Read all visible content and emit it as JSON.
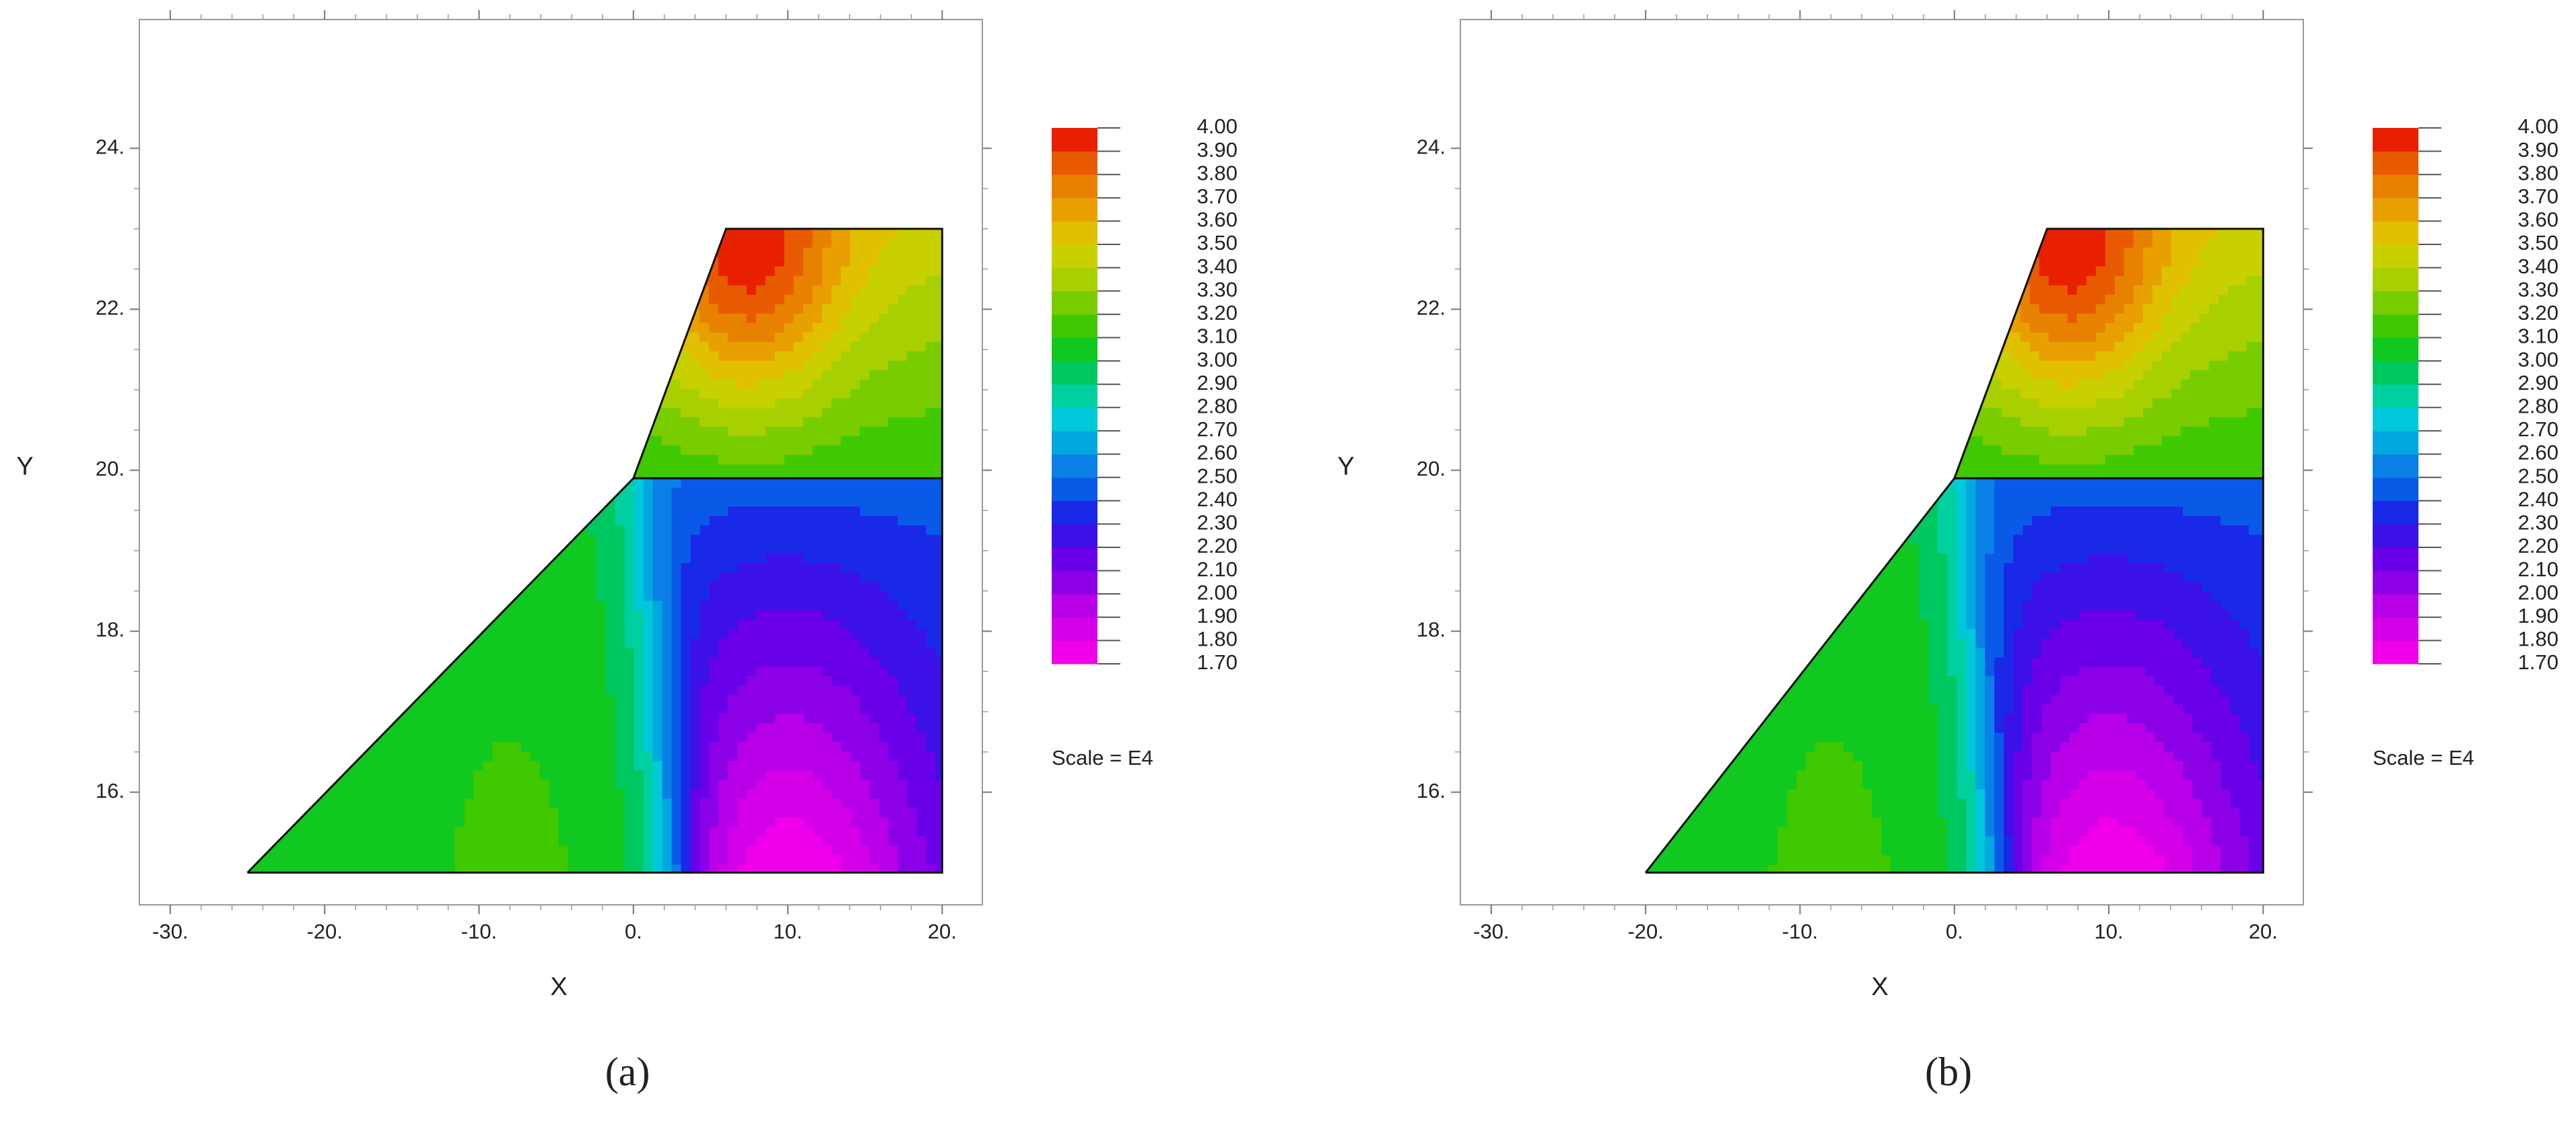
{
  "chart_data": [
    {
      "type": "contour",
      "xlabel": "X",
      "ylabel": "Y",
      "xlim": [
        -32,
        22.6
      ],
      "ylim": [
        14.6,
        25.6
      ],
      "xticks": [
        {
          "value": -30,
          "label": "-30."
        },
        {
          "value": -20,
          "label": "-20."
        },
        {
          "value": -10,
          "label": "-10."
        },
        {
          "value": 0,
          "label": "0."
        },
        {
          "value": 10,
          "label": "10."
        },
        {
          "value": 20,
          "label": "20."
        }
      ],
      "yticks": [
        {
          "value": 16,
          "label": "16."
        },
        {
          "value": 18,
          "label": "18."
        },
        {
          "value": 20,
          "label": "20."
        },
        {
          "value": 22,
          "label": "22."
        },
        {
          "value": 24,
          "label": "24."
        }
      ],
      "levels": [
        {
          "value": 1.7,
          "label": "1.70"
        },
        {
          "value": 1.8,
          "label": "1.80"
        },
        {
          "value": 1.9,
          "label": "1.90"
        },
        {
          "value": 2,
          "label": "2.00"
        },
        {
          "value": 2.1,
          "label": "2.10"
        },
        {
          "value": 2.2,
          "label": "2.20"
        },
        {
          "value": 2.3,
          "label": "2.30"
        },
        {
          "value": 2.4,
          "label": "2.40"
        },
        {
          "value": 2.5,
          "label": "2.50"
        },
        {
          "value": 2.6,
          "label": "2.60"
        },
        {
          "value": 2.7,
          "label": "2.70"
        },
        {
          "value": 2.8,
          "label": "2.80"
        },
        {
          "value": 2.9,
          "label": "2.90"
        },
        {
          "value": 3,
          "label": "3.00"
        },
        {
          "value": 3.1,
          "label": "3.10"
        },
        {
          "value": 3.2,
          "label": "3.20"
        },
        {
          "value": 3.3,
          "label": "3.30"
        },
        {
          "value": 3.4,
          "label": "3.40"
        },
        {
          "value": 3.5,
          "label": "3.50"
        },
        {
          "value": 3.6,
          "label": "3.60"
        },
        {
          "value": 3.7,
          "label": "3.70"
        },
        {
          "value": 3.8,
          "label": "3.80"
        },
        {
          "value": 3.9,
          "label": "3.90"
        },
        {
          "value": 4,
          "label": "4.00"
        }
      ],
      "level_colors": [
        "#f000e8",
        "#d400e8",
        "#b800e8",
        "#8c00e8",
        "#6a00e8",
        "#3c10e8",
        "#1a28e8",
        "#0a5ae8",
        "#0a80e6",
        "#00a8e0",
        "#00c8d8",
        "#00d0a0",
        "#00c860",
        "#10c820",
        "#40c800",
        "#78cc00",
        "#a8d000",
        "#c8d000",
        "#e0c000",
        "#e8a000",
        "#e88000",
        "#e85a00",
        "#e82000"
      ],
      "scale_note": "Scale = E4",
      "caption": "(a)",
      "regions": [
        {
          "x": [
            -25,
            0,
            20,
            20
          ],
          "y": [
            15,
            19.9,
            19.9,
            15
          ]
        },
        {
          "x": [
            0,
            6,
            20,
            20
          ],
          "y": [
            19.9,
            23,
            23,
            19.9
          ]
        }
      ]
    },
    {
      "type": "contour",
      "xlabel": "X",
      "ylabel": "Y",
      "xlim": [
        -32,
        22.6
      ],
      "ylim": [
        14.6,
        25.6
      ],
      "xticks": [
        {
          "value": -30,
          "label": "-30."
        },
        {
          "value": -20,
          "label": "-20."
        },
        {
          "value": -10,
          "label": "-10."
        },
        {
          "value": 0,
          "label": "0."
        },
        {
          "value": 10,
          "label": "10."
        },
        {
          "value": 20,
          "label": "20."
        }
      ],
      "yticks": [
        {
          "value": 16,
          "label": "16."
        },
        {
          "value": 18,
          "label": "18."
        },
        {
          "value": 20,
          "label": "20."
        },
        {
          "value": 22,
          "label": "22."
        },
        {
          "value": 24,
          "label": "24."
        }
      ],
      "levels": [
        {
          "value": 1.7,
          "label": "1.70"
        },
        {
          "value": 1.8,
          "label": "1.80"
        },
        {
          "value": 1.9,
          "label": "1.90"
        },
        {
          "value": 2,
          "label": "2.00"
        },
        {
          "value": 2.1,
          "label": "2.10"
        },
        {
          "value": 2.2,
          "label": "2.20"
        },
        {
          "value": 2.3,
          "label": "2.30"
        },
        {
          "value": 2.4,
          "label": "2.40"
        },
        {
          "value": 2.5,
          "label": "2.50"
        },
        {
          "value": 2.6,
          "label": "2.60"
        },
        {
          "value": 2.7,
          "label": "2.70"
        },
        {
          "value": 2.8,
          "label": "2.80"
        },
        {
          "value": 2.9,
          "label": "2.90"
        },
        {
          "value": 3,
          "label": "3.00"
        },
        {
          "value": 3.1,
          "label": "3.10"
        },
        {
          "value": 3.2,
          "label": "3.20"
        },
        {
          "value": 3.3,
          "label": "3.30"
        },
        {
          "value": 3.4,
          "label": "3.40"
        },
        {
          "value": 3.5,
          "label": "3.50"
        },
        {
          "value": 3.6,
          "label": "3.60"
        },
        {
          "value": 3.7,
          "label": "3.70"
        },
        {
          "value": 3.8,
          "label": "3.80"
        },
        {
          "value": 3.9,
          "label": "3.90"
        },
        {
          "value": 4,
          "label": "4.00"
        }
      ],
      "level_colors": [
        "#f000e8",
        "#d400e8",
        "#b800e8",
        "#8c00e8",
        "#6a00e8",
        "#3c10e8",
        "#1a28e8",
        "#0a5ae8",
        "#0a80e6",
        "#00a8e0",
        "#00c8d8",
        "#00d0a0",
        "#00c860",
        "#10c820",
        "#40c800",
        "#78cc00",
        "#a8d000",
        "#c8d000",
        "#e0c000",
        "#e8a000",
        "#e88000",
        "#e85a00",
        "#e82000"
      ],
      "scale_note": "Scale = E4",
      "caption": "(b)",
      "regions": [
        {
          "x": [
            -20,
            0,
            20,
            20
          ],
          "y": [
            15,
            19.9,
            19.9,
            15
          ]
        },
        {
          "x": [
            0,
            6,
            20,
            20
          ],
          "y": [
            19.9,
            23,
            23,
            19.9
          ]
        }
      ]
    }
  ]
}
